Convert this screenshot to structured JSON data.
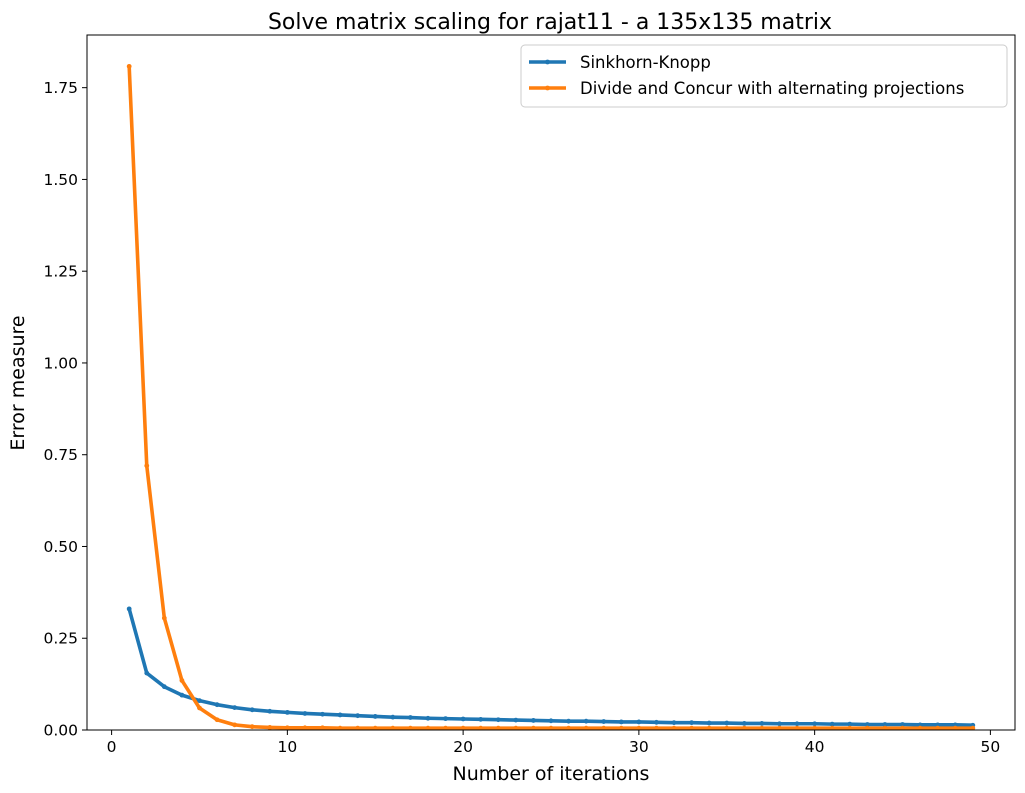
{
  "chart_data": {
    "type": "line",
    "title": "Solve matrix scaling for rajat11 - a 135x135 matrix",
    "xlabel": "Number of iterations",
    "ylabel": "Error measure",
    "xlim": [
      -1.4,
      51.4
    ],
    "ylim": [
      0,
      1.8935
    ],
    "xticks": [
      0,
      10,
      20,
      30,
      40,
      50
    ],
    "yticks": [
      0.0,
      0.25,
      0.5,
      0.75,
      1.0,
      1.25,
      1.5,
      1.75
    ],
    "xtick_labels": [
      "0",
      "10",
      "20",
      "30",
      "40",
      "50"
    ],
    "ytick_labels": [
      "0.00",
      "0.25",
      "0.50",
      "0.75",
      "1.00",
      "1.25",
      "1.50",
      "1.75"
    ],
    "legend_position": "upper right",
    "grid": false,
    "x": [
      1,
      2,
      3,
      4,
      5,
      6,
      7,
      8,
      9,
      10,
      11,
      12,
      13,
      14,
      15,
      16,
      17,
      18,
      19,
      20,
      21,
      22,
      23,
      24,
      25,
      26,
      27,
      28,
      29,
      30,
      31,
      32,
      33,
      34,
      35,
      36,
      37,
      38,
      39,
      40,
      41,
      42,
      43,
      44,
      45,
      46,
      47,
      48,
      49
    ],
    "series": [
      {
        "name": "Sinkhorn-Knopp",
        "color": "#1f77b4",
        "values": [
          0.33,
          0.155,
          0.118,
          0.095,
          0.08,
          0.069,
          0.061,
          0.055,
          0.051,
          0.048,
          0.045,
          0.043,
          0.041,
          0.039,
          0.037,
          0.035,
          0.034,
          0.032,
          0.031,
          0.03,
          0.029,
          0.028,
          0.027,
          0.026,
          0.025,
          0.024,
          0.024,
          0.023,
          0.022,
          0.022,
          0.021,
          0.02,
          0.02,
          0.019,
          0.019,
          0.018,
          0.018,
          0.017,
          0.017,
          0.017,
          0.016,
          0.016,
          0.015,
          0.015,
          0.015,
          0.014,
          0.014,
          0.014,
          0.013
        ]
      },
      {
        "name": "Divide and Concur with alternating projections",
        "color": "#ff7f0e",
        "values": [
          1.808,
          0.72,
          0.305,
          0.135,
          0.06,
          0.028,
          0.014,
          0.009,
          0.007,
          0.006,
          0.006,
          0.006,
          0.005,
          0.005,
          0.005,
          0.005,
          0.005,
          0.005,
          0.005,
          0.005,
          0.005,
          0.005,
          0.005,
          0.005,
          0.005,
          0.005,
          0.005,
          0.005,
          0.005,
          0.005,
          0.005,
          0.005,
          0.005,
          0.005,
          0.005,
          0.005,
          0.005,
          0.005,
          0.005,
          0.005,
          0.005,
          0.005,
          0.005,
          0.005,
          0.005,
          0.005,
          0.005,
          0.005,
          0.005
        ]
      }
    ]
  }
}
